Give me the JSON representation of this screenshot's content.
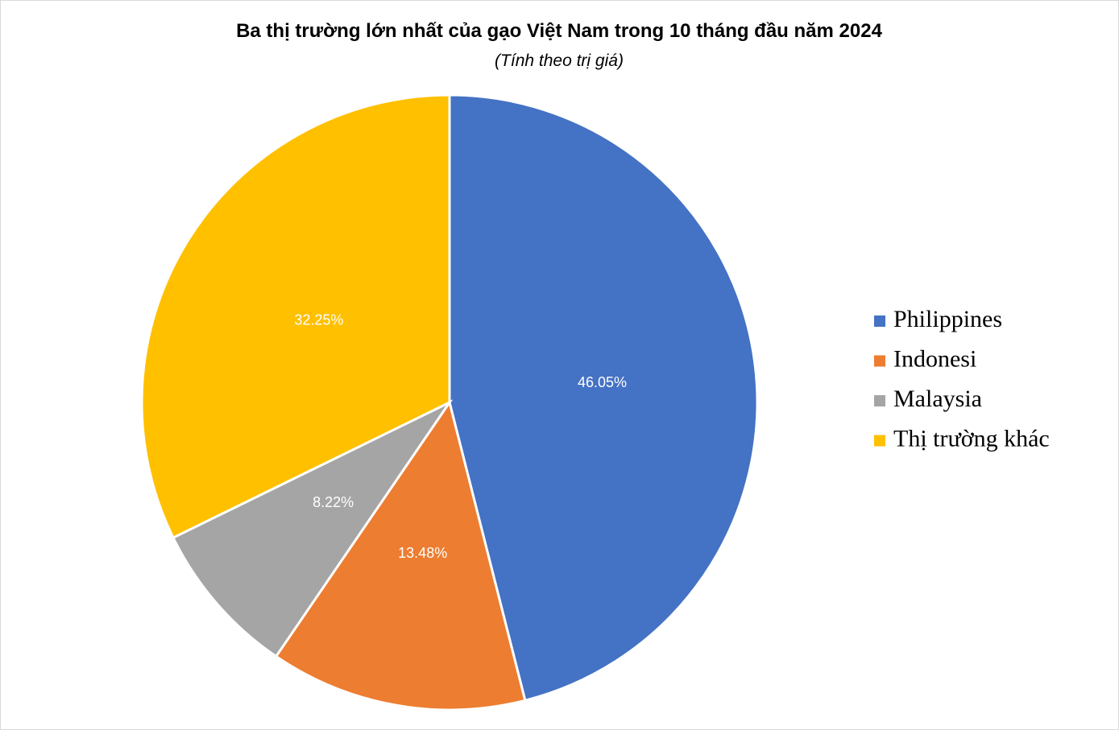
{
  "chart_data": {
    "type": "pie",
    "title": "Ba thị trường lớn nhất của gạo Việt Nam trong 10 tháng đầu năm 2024",
    "subtitle": "(Tính theo trị giá)",
    "categories": [
      "Philippines",
      "Indonesi",
      "Malaysia",
      "Thị trường khác"
    ],
    "values": [
      46.05,
      13.48,
      8.22,
      32.25
    ],
    "value_labels": [
      "46.05%",
      "13.48%",
      "8.22%",
      "32.25%"
    ],
    "colors": [
      "#4472c4",
      "#ed7d31",
      "#a5a5a5",
      "#ffc000"
    ],
    "legend": "right"
  }
}
